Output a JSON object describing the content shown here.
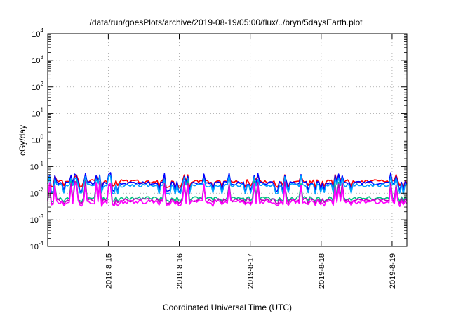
{
  "chart_data": {
    "type": "line",
    "title": "/data/run/goesPlots/archive/2019-08-19/05:00/flux/../bryn/5daysEarth.plot",
    "xlabel": "Coordinated Universal Time (UTC)",
    "ylabel": "cGy/day",
    "y_scale": "log",
    "ylim": [
      0.0001,
      10000
    ],
    "y_ticks": [
      {
        "base": "10",
        "exp": "-4",
        "value": 0.0001
      },
      {
        "base": "10",
        "exp": "-3",
        "value": 0.001
      },
      {
        "base": "10",
        "exp": "-2",
        "value": 0.01
      },
      {
        "base": "10",
        "exp": "-1",
        "value": 0.1
      },
      {
        "base": "10",
        "exp": "0",
        "value": 1
      },
      {
        "base": "10",
        "exp": "1",
        "value": 10
      },
      {
        "base": "10",
        "exp": "2",
        "value": 100
      },
      {
        "base": "10",
        "exp": "3",
        "value": 1000
      },
      {
        "base": "10",
        "exp": "4",
        "value": 10000
      }
    ],
    "x_range": [
      "2019-08-14T03:30",
      "2019-08-19T05:00"
    ],
    "x_ticks": [
      "2019-8-15",
      "2019-8-16",
      "2019-8-17",
      "2019-8-18",
      "2019-8-19"
    ],
    "grid": true,
    "series": [
      {
        "color": "#ff0000",
        "baseline": 0.028,
        "spike": 0.05,
        "dip": 0.018
      },
      {
        "color": "#0000ff",
        "baseline": 0.024,
        "spike": 0.06,
        "dip": 0.012
      },
      {
        "color": "#00a0ff",
        "baseline": 0.02,
        "spike": 0.045,
        "dip": 0.01
      },
      {
        "color": "#00c080",
        "baseline": 0.0065,
        "spike": 0.03,
        "dip": 0.005
      },
      {
        "color": "#c000c0",
        "baseline": 0.0055,
        "spike": 0.028,
        "dip": 0.0042
      },
      {
        "color": "#ff00ff",
        "baseline": 0.0047,
        "spike": 0.025,
        "dip": 0.0035
      }
    ]
  }
}
